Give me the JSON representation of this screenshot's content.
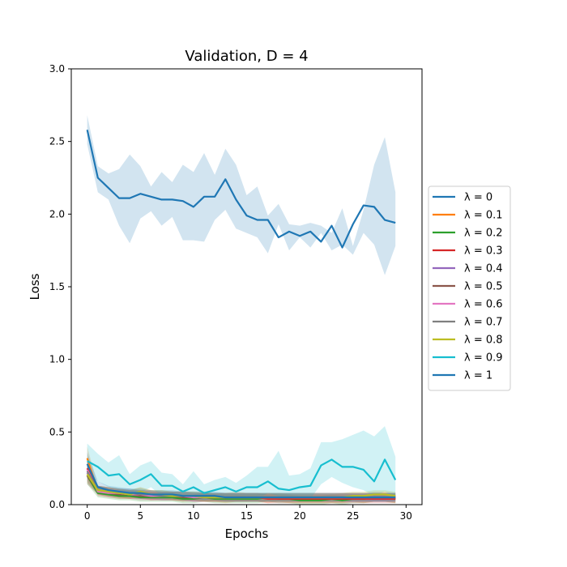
{
  "chart_data": {
    "type": "line",
    "title": "Validation, D = 4",
    "xlabel": "Epochs",
    "ylabel": "Loss",
    "xlim": [
      -1.5,
      31.5
    ],
    "ylim": [
      0,
      3.0
    ],
    "xticks": [
      0,
      5,
      10,
      15,
      20,
      25,
      30
    ],
    "yticks": [
      0.0,
      0.5,
      1.0,
      1.5,
      2.0,
      2.5,
      3.0
    ],
    "xtick_labels": [
      "0",
      "5",
      "10",
      "15",
      "20",
      "25",
      "30"
    ],
    "ytick_labels": [
      "0.0",
      "0.5",
      "1.0",
      "1.5",
      "2.0",
      "2.5",
      "3.0"
    ],
    "legend_position": "right, outside plot",
    "x": [
      0,
      1,
      2,
      3,
      4,
      5,
      6,
      7,
      8,
      9,
      10,
      11,
      12,
      13,
      14,
      15,
      16,
      17,
      18,
      19,
      20,
      21,
      22,
      23,
      24,
      25,
      26,
      27,
      28,
      29
    ],
    "series": [
      {
        "name": "λ = 0",
        "color": "#1f77b4",
        "values": [
          2.58,
          2.25,
          2.18,
          2.11,
          2.11,
          2.14,
          2.12,
          2.1,
          2.1,
          2.09,
          2.05,
          2.12,
          2.12,
          2.24,
          2.1,
          1.99,
          1.96,
          1.96,
          1.84,
          1.88,
          1.85,
          1.88,
          1.81,
          1.92,
          1.77,
          1.93,
          2.06,
          2.05,
          1.96,
          1.94
        ],
        "lower": [
          2.48,
          2.15,
          2.1,
          1.92,
          1.8,
          1.97,
          2.02,
          1.92,
          1.98,
          1.82,
          1.82,
          1.81,
          1.96,
          2.03,
          1.9,
          1.87,
          1.84,
          1.73,
          1.93,
          1.75,
          1.84,
          1.77,
          1.87,
          1.75,
          1.79,
          1.72,
          1.87,
          1.79,
          1.58,
          1.78
        ],
        "upper": [
          2.68,
          2.33,
          2.28,
          2.31,
          2.41,
          2.33,
          2.19,
          2.29,
          2.22,
          2.34,
          2.29,
          2.42,
          2.27,
          2.45,
          2.34,
          2.13,
          2.19,
          1.99,
          2.07,
          1.93,
          1.92,
          1.94,
          1.92,
          1.87,
          2.04,
          1.78,
          2.03,
          2.34,
          2.53,
          2.15
        ]
      },
      {
        "name": "λ = 0.1",
        "color": "#ff7f0e",
        "values": [
          0.32,
          0.09,
          0.08,
          0.07,
          0.07,
          0.08,
          0.06,
          0.07,
          0.06,
          0.05,
          0.06,
          0.05,
          0.05,
          0.04,
          0.05,
          0.05,
          0.05,
          0.04,
          0.05,
          0.04,
          0.04,
          0.04,
          0.04,
          0.04,
          0.04,
          0.05,
          0.04,
          0.05,
          0.05,
          0.04
        ],
        "lower": [
          0.22,
          0.06,
          0.05,
          0.04,
          0.04,
          0.05,
          0.03,
          0.04,
          0.03,
          0.02,
          0.03,
          0.02,
          0.02,
          0.01,
          0.02,
          0.02,
          0.02,
          0.01,
          0.02,
          0.01,
          0.01,
          0.01,
          0.01,
          0.01,
          0.01,
          0.02,
          0.01,
          0.02,
          0.02,
          0.01
        ],
        "upper": [
          0.4,
          0.13,
          0.12,
          0.11,
          0.1,
          0.12,
          0.1,
          0.1,
          0.09,
          0.09,
          0.09,
          0.09,
          0.08,
          0.08,
          0.09,
          0.08,
          0.08,
          0.07,
          0.08,
          0.07,
          0.07,
          0.07,
          0.07,
          0.07,
          0.08,
          0.08,
          0.08,
          0.09,
          0.09,
          0.08
        ]
      },
      {
        "name": "λ = 0.2",
        "color": "#2ca02c",
        "values": [
          0.2,
          0.08,
          0.07,
          0.06,
          0.06,
          0.05,
          0.05,
          0.05,
          0.05,
          0.04,
          0.04,
          0.05,
          0.04,
          0.04,
          0.04,
          0.04,
          0.04,
          0.05,
          0.04,
          0.04,
          0.03,
          0.03,
          0.03,
          0.04,
          0.03,
          0.04,
          0.04,
          0.05,
          0.05,
          0.04
        ],
        "lower": [
          0.14,
          0.05,
          0.04,
          0.03,
          0.03,
          0.02,
          0.02,
          0.02,
          0.02,
          0.01,
          0.01,
          0.02,
          0.01,
          0.01,
          0.01,
          0.01,
          0.01,
          0.02,
          0.01,
          0.01,
          0.0,
          0.0,
          0.0,
          0.01,
          0.0,
          0.01,
          0.01,
          0.02,
          0.02,
          0.01
        ],
        "upper": [
          0.27,
          0.11,
          0.1,
          0.09,
          0.09,
          0.08,
          0.08,
          0.08,
          0.08,
          0.07,
          0.07,
          0.08,
          0.07,
          0.07,
          0.07,
          0.07,
          0.07,
          0.08,
          0.07,
          0.07,
          0.06,
          0.06,
          0.06,
          0.07,
          0.06,
          0.07,
          0.07,
          0.08,
          0.08,
          0.07
        ]
      },
      {
        "name": "λ = 0.3",
        "color": "#d62728",
        "values": [
          0.25,
          0.1,
          0.09,
          0.08,
          0.07,
          0.07,
          0.06,
          0.06,
          0.06,
          0.06,
          0.05,
          0.05,
          0.05,
          0.05,
          0.05,
          0.05,
          0.05,
          0.04,
          0.04,
          0.04,
          0.04,
          0.04,
          0.04,
          0.04,
          0.04,
          0.04,
          0.04,
          0.04,
          0.04,
          0.04
        ],
        "lower": [
          0.18,
          0.07,
          0.06,
          0.05,
          0.04,
          0.04,
          0.03,
          0.03,
          0.03,
          0.03,
          0.02,
          0.02,
          0.02,
          0.02,
          0.02,
          0.02,
          0.02,
          0.01,
          0.01,
          0.01,
          0.01,
          0.01,
          0.01,
          0.01,
          0.01,
          0.01,
          0.01,
          0.01,
          0.01,
          0.01
        ],
        "upper": [
          0.32,
          0.13,
          0.12,
          0.11,
          0.1,
          0.1,
          0.09,
          0.09,
          0.09,
          0.09,
          0.08,
          0.08,
          0.08,
          0.08,
          0.08,
          0.08,
          0.08,
          0.07,
          0.07,
          0.07,
          0.07,
          0.07,
          0.07,
          0.07,
          0.07,
          0.07,
          0.07,
          0.07,
          0.07,
          0.07
        ]
      },
      {
        "name": "λ = 0.4",
        "color": "#9467bd",
        "values": [
          0.22,
          0.1,
          0.09,
          0.08,
          0.08,
          0.07,
          0.07,
          0.06,
          0.06,
          0.06,
          0.05,
          0.05,
          0.05,
          0.05,
          0.05,
          0.05,
          0.05,
          0.05,
          0.05,
          0.05,
          0.05,
          0.05,
          0.05,
          0.05,
          0.05,
          0.05,
          0.05,
          0.05,
          0.05,
          0.05
        ],
        "lower": [
          0.15,
          0.07,
          0.06,
          0.05,
          0.05,
          0.04,
          0.04,
          0.03,
          0.03,
          0.03,
          0.02,
          0.02,
          0.02,
          0.02,
          0.02,
          0.02,
          0.02,
          0.02,
          0.02,
          0.02,
          0.02,
          0.02,
          0.02,
          0.02,
          0.02,
          0.02,
          0.02,
          0.02,
          0.02,
          0.02
        ],
        "upper": [
          0.29,
          0.13,
          0.12,
          0.11,
          0.11,
          0.1,
          0.1,
          0.09,
          0.09,
          0.09,
          0.08,
          0.08,
          0.08,
          0.08,
          0.08,
          0.08,
          0.08,
          0.08,
          0.08,
          0.08,
          0.08,
          0.08,
          0.08,
          0.08,
          0.08,
          0.08,
          0.08,
          0.08,
          0.08,
          0.08
        ]
      },
      {
        "name": "λ = 0.5",
        "color": "#8c564b",
        "values": [
          0.2,
          0.1,
          0.08,
          0.07,
          0.07,
          0.06,
          0.06,
          0.06,
          0.06,
          0.05,
          0.05,
          0.05,
          0.05,
          0.05,
          0.05,
          0.05,
          0.05,
          0.05,
          0.05,
          0.05,
          0.05,
          0.05,
          0.05,
          0.05,
          0.05,
          0.05,
          0.05,
          0.05,
          0.05,
          0.05
        ],
        "lower": [
          0.14,
          0.07,
          0.05,
          0.04,
          0.04,
          0.03,
          0.03,
          0.03,
          0.03,
          0.02,
          0.02,
          0.02,
          0.02,
          0.02,
          0.02,
          0.02,
          0.02,
          0.02,
          0.02,
          0.02,
          0.02,
          0.02,
          0.02,
          0.02,
          0.02,
          0.02,
          0.02,
          0.02,
          0.02,
          0.02
        ],
        "upper": [
          0.26,
          0.13,
          0.11,
          0.1,
          0.1,
          0.09,
          0.09,
          0.09,
          0.09,
          0.08,
          0.08,
          0.08,
          0.08,
          0.08,
          0.08,
          0.08,
          0.08,
          0.08,
          0.08,
          0.08,
          0.08,
          0.08,
          0.08,
          0.08,
          0.08,
          0.08,
          0.08,
          0.08,
          0.08,
          0.08
        ]
      },
      {
        "name": "λ = 0.6",
        "color": "#e377c2",
        "values": [
          0.24,
          0.09,
          0.08,
          0.08,
          0.07,
          0.07,
          0.06,
          0.06,
          0.06,
          0.06,
          0.05,
          0.05,
          0.05,
          0.05,
          0.05,
          0.05,
          0.05,
          0.05,
          0.05,
          0.05,
          0.05,
          0.05,
          0.05,
          0.05,
          0.05,
          0.05,
          0.05,
          0.05,
          0.05,
          0.05
        ],
        "lower": [
          0.17,
          0.06,
          0.05,
          0.05,
          0.04,
          0.04,
          0.03,
          0.03,
          0.03,
          0.03,
          0.02,
          0.02,
          0.02,
          0.02,
          0.02,
          0.02,
          0.02,
          0.02,
          0.02,
          0.02,
          0.02,
          0.02,
          0.02,
          0.02,
          0.02,
          0.02,
          0.02,
          0.02,
          0.02,
          0.02
        ],
        "upper": [
          0.31,
          0.12,
          0.11,
          0.11,
          0.1,
          0.1,
          0.09,
          0.09,
          0.09,
          0.09,
          0.08,
          0.08,
          0.08,
          0.08,
          0.08,
          0.08,
          0.08,
          0.08,
          0.08,
          0.08,
          0.08,
          0.08,
          0.08,
          0.08,
          0.08,
          0.08,
          0.08,
          0.08,
          0.08,
          0.08
        ]
      },
      {
        "name": "λ = 0.7",
        "color": "#7f7f7f",
        "values": [
          0.23,
          0.1,
          0.09,
          0.08,
          0.08,
          0.07,
          0.07,
          0.06,
          0.06,
          0.06,
          0.06,
          0.05,
          0.05,
          0.05,
          0.05,
          0.05,
          0.05,
          0.05,
          0.05,
          0.05,
          0.05,
          0.05,
          0.05,
          0.05,
          0.05,
          0.05,
          0.05,
          0.05,
          0.05,
          0.05
        ],
        "lower": [
          0.16,
          0.07,
          0.06,
          0.05,
          0.05,
          0.04,
          0.04,
          0.03,
          0.03,
          0.03,
          0.03,
          0.02,
          0.02,
          0.02,
          0.02,
          0.02,
          0.02,
          0.02,
          0.02,
          0.02,
          0.02,
          0.02,
          0.02,
          0.02,
          0.02,
          0.02,
          0.02,
          0.02,
          0.02,
          0.02
        ],
        "upper": [
          0.3,
          0.13,
          0.12,
          0.11,
          0.11,
          0.1,
          0.1,
          0.09,
          0.09,
          0.09,
          0.09,
          0.08,
          0.08,
          0.08,
          0.08,
          0.08,
          0.08,
          0.08,
          0.08,
          0.08,
          0.08,
          0.08,
          0.08,
          0.08,
          0.08,
          0.08,
          0.08,
          0.08,
          0.08,
          0.08
        ]
      },
      {
        "name": "λ = 0.8",
        "color": "#bcbd22",
        "values": [
          0.21,
          0.1,
          0.09,
          0.08,
          0.07,
          0.09,
          0.07,
          0.07,
          0.06,
          0.06,
          0.06,
          0.05,
          0.05,
          0.05,
          0.05,
          0.05,
          0.05,
          0.05,
          0.05,
          0.05,
          0.05,
          0.05,
          0.05,
          0.05,
          0.05,
          0.06,
          0.06,
          0.07,
          0.07,
          0.06
        ],
        "lower": [
          0.15,
          0.07,
          0.06,
          0.05,
          0.04,
          0.06,
          0.04,
          0.04,
          0.03,
          0.03,
          0.03,
          0.02,
          0.02,
          0.02,
          0.02,
          0.02,
          0.02,
          0.02,
          0.02,
          0.02,
          0.02,
          0.02,
          0.02,
          0.02,
          0.02,
          0.03,
          0.03,
          0.04,
          0.04,
          0.03
        ],
        "upper": [
          0.27,
          0.13,
          0.12,
          0.11,
          0.1,
          0.12,
          0.1,
          0.1,
          0.09,
          0.09,
          0.09,
          0.08,
          0.08,
          0.08,
          0.08,
          0.08,
          0.08,
          0.08,
          0.08,
          0.08,
          0.08,
          0.08,
          0.08,
          0.08,
          0.08,
          0.09,
          0.09,
          0.1,
          0.1,
          0.09
        ]
      },
      {
        "name": "λ = 0.9",
        "color": "#17becf",
        "values": [
          0.3,
          0.26,
          0.2,
          0.21,
          0.14,
          0.17,
          0.21,
          0.13,
          0.13,
          0.09,
          0.12,
          0.08,
          0.1,
          0.12,
          0.09,
          0.12,
          0.12,
          0.16,
          0.11,
          0.1,
          0.12,
          0.13,
          0.27,
          0.31,
          0.26,
          0.26,
          0.24,
          0.16,
          0.31,
          0.17
        ],
        "lower": [
          0.21,
          0.16,
          0.12,
          0.1,
          0.08,
          0.08,
          0.12,
          0.06,
          0.06,
          0.04,
          0.05,
          0.03,
          0.05,
          0.05,
          0.04,
          0.06,
          0.04,
          0.08,
          0.06,
          0.05,
          0.05,
          0.04,
          0.14,
          0.19,
          0.15,
          0.12,
          0.1,
          0.06,
          0.09,
          0.05
        ],
        "upper": [
          0.42,
          0.35,
          0.29,
          0.34,
          0.21,
          0.27,
          0.3,
          0.22,
          0.21,
          0.14,
          0.23,
          0.14,
          0.17,
          0.19,
          0.15,
          0.2,
          0.26,
          0.26,
          0.37,
          0.2,
          0.21,
          0.25,
          0.43,
          0.43,
          0.45,
          0.48,
          0.51,
          0.47,
          0.54,
          0.33
        ]
      },
      {
        "name": "λ = 1",
        "color": "#1f77b4",
        "values": [
          0.28,
          0.12,
          0.1,
          0.09,
          0.08,
          0.08,
          0.07,
          0.07,
          0.07,
          0.06,
          0.06,
          0.06,
          0.06,
          0.05,
          0.05,
          0.05,
          0.05,
          0.05,
          0.05,
          0.05,
          0.05,
          0.05,
          0.05,
          0.05,
          0.05,
          0.05,
          0.05,
          0.05,
          0.05,
          0.05
        ],
        "lower": [
          0.2,
          0.08,
          0.07,
          0.06,
          0.05,
          0.05,
          0.04,
          0.04,
          0.04,
          0.03,
          0.03,
          0.03,
          0.03,
          0.02,
          0.02,
          0.02,
          0.02,
          0.02,
          0.02,
          0.02,
          0.02,
          0.02,
          0.02,
          0.02,
          0.02,
          0.02,
          0.02,
          0.02,
          0.02,
          0.02
        ],
        "upper": [
          0.36,
          0.16,
          0.13,
          0.12,
          0.11,
          0.11,
          0.1,
          0.1,
          0.1,
          0.09,
          0.09,
          0.09,
          0.09,
          0.08,
          0.08,
          0.08,
          0.08,
          0.08,
          0.08,
          0.08,
          0.08,
          0.08,
          0.08,
          0.08,
          0.08,
          0.08,
          0.08,
          0.08,
          0.08,
          0.08
        ]
      }
    ]
  }
}
